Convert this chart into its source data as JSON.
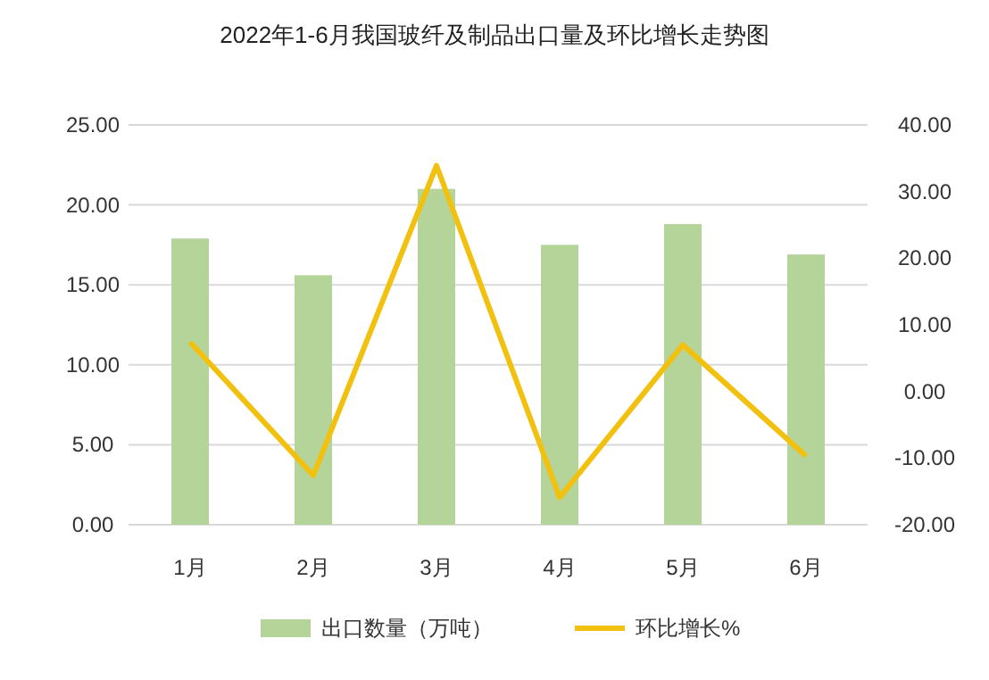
{
  "chart_data": {
    "type": "bar",
    "title": "2022年1-6月我国玻纤及制品出口量及环比增长走势图",
    "categories": [
      "1月",
      "2月",
      "3月",
      "4月",
      "5月",
      "6月"
    ],
    "series": [
      {
        "name": "出口数量（万吨）",
        "color": "#b5d49a",
        "values": [
          17.9,
          15.6,
          21.0,
          17.5,
          18.8,
          16.9
        ]
      },
      {
        "name": "环比增长%",
        "type": "line",
        "axis": "y2",
        "color": "#f2c10f",
        "values": [
          7.4,
          -12.6,
          33.9,
          -15.9,
          7.0,
          -9.7
        ]
      }
    ],
    "ylim": [
      0,
      25
    ],
    "yticks": [
      {
        "value": 0,
        "label": "0.00"
      },
      {
        "value": 5,
        "label": "5.00"
      },
      {
        "value": 10,
        "label": "10.00"
      },
      {
        "value": 15,
        "label": "15.00"
      },
      {
        "value": 20,
        "label": "20.00"
      },
      {
        "value": 25,
        "label": "25.00"
      }
    ],
    "y2lim": [
      -20,
      40
    ],
    "y2ticks": [
      {
        "value": -20,
        "label": "-20.00"
      },
      {
        "value": -10,
        "label": "-10.00"
      },
      {
        "value": 0,
        "label": "0.00"
      },
      {
        "value": 10,
        "label": "10.00"
      },
      {
        "value": 20,
        "label": "20.00"
      },
      {
        "value": 30,
        "label": "30.00"
      },
      {
        "value": 40,
        "label": "40.00"
      }
    ],
    "grid": "y",
    "legend": "bottom"
  }
}
